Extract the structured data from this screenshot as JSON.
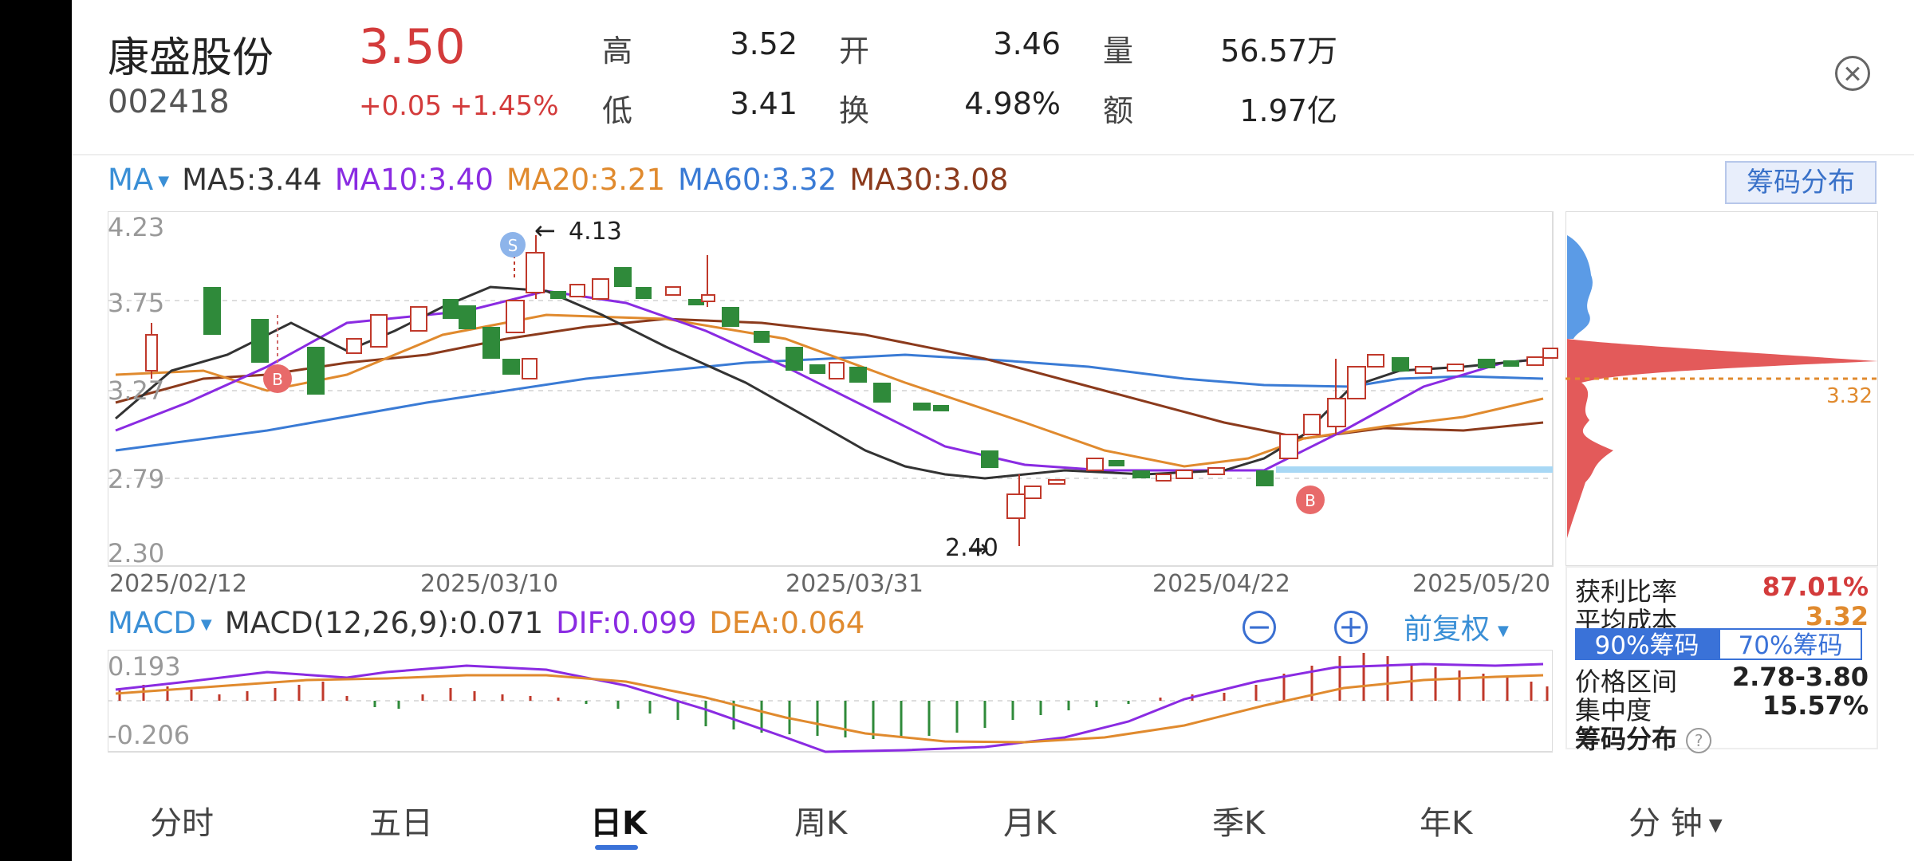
{
  "stock": {
    "name": "康盛股份",
    "code": "002418",
    "price": "3.50",
    "change": "+0.05",
    "change_pct": "+1.45%"
  },
  "quote": {
    "high_label": "高",
    "high": "3.52",
    "low_label": "低",
    "low": "3.41",
    "open_label": "开",
    "open": "3.46",
    "turnover_label": "换",
    "turnover": "4.98%",
    "volume_label": "量",
    "volume": "56.57万",
    "amount_label": "额",
    "amount": "1.97亿"
  },
  "ma_bar": {
    "selector": "MA",
    "items": [
      {
        "text": "MA5:3.44",
        "color": "#333333"
      },
      {
        "text": "MA10:3.40",
        "color": "#8a2be2"
      },
      {
        "text": "MA20:3.21",
        "color": "#e08a2e"
      },
      {
        "text": "MA60:3.32",
        "color": "#3a7bd5"
      },
      {
        "text": "MA30:3.08",
        "color": "#8b3a1c"
      }
    ],
    "chip_button": "筹码分布"
  },
  "kline": {
    "y_labels": [
      "4.23",
      "3.75",
      "3.27",
      "2.79",
      "2.30"
    ],
    "x_labels": [
      "2025/02/12",
      "2025/03/10",
      "2025/03/31",
      "2025/04/22",
      "2025/05/20"
    ],
    "high_annotation": "4.13",
    "low_annotation": "2.40",
    "signal_s": "S",
    "signal_b": "B",
    "chip_avg_price": "3.32"
  },
  "macd_bar": {
    "selector": "MACD",
    "items": [
      {
        "text": "MACD(12,26,9):0.071",
        "color": "#333333"
      },
      {
        "text": "DIF:0.099",
        "color": "#8a2be2"
      },
      {
        "text": "DEA:0.064",
        "color": "#e08a2e"
      }
    ],
    "zoom_out": "−",
    "zoom_in": "+",
    "adjust": "前复权",
    "y_labels": [
      "0.193",
      "-0.206"
    ]
  },
  "chip_panel": {
    "profit_ratio_label": "获利比率",
    "profit_ratio": "87.01%",
    "avg_cost_label": "平均成本",
    "avg_cost": "3.32",
    "seg_90": "90%筹码",
    "seg_70": "70%筹码",
    "range_label": "价格区间",
    "range": "2.78-3.80",
    "concentration_label": "集中度",
    "concentration": "15.57%",
    "footer": "筹码分布",
    "help": "?"
  },
  "tabs": [
    "分时",
    "五日",
    "日K",
    "周K",
    "月K",
    "季K",
    "年K",
    "分 钟"
  ],
  "colors": {
    "up": "#d33b3b",
    "down": "#2f8a3a",
    "accent": "#3a72d8"
  }
}
